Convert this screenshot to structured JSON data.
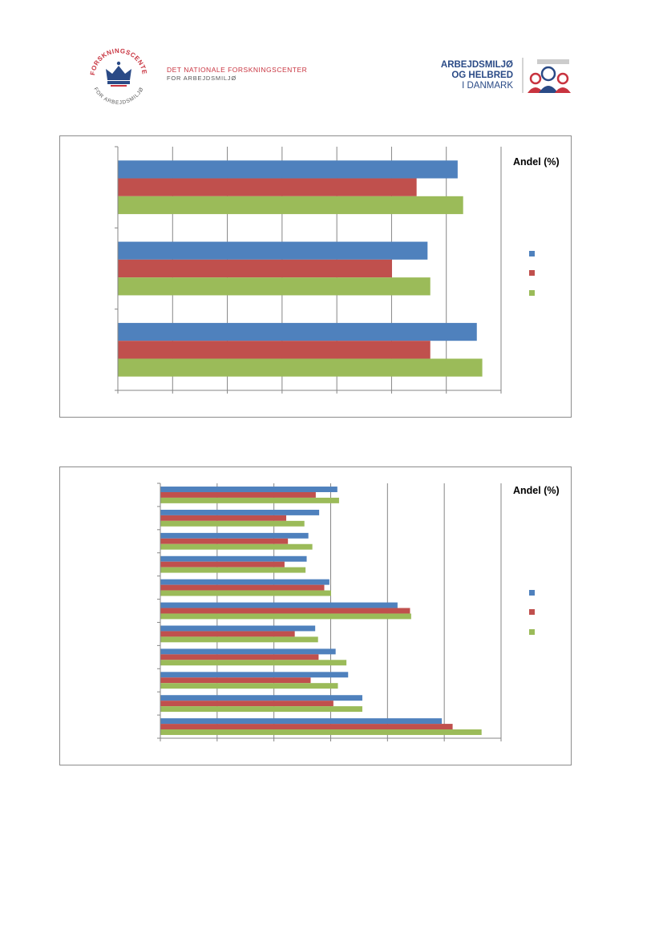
{
  "header": {
    "left_logo": {
      "ring_text": "FORSKNINGSCENTER FOR ARBEJDSMILJØ",
      "name_line1": "DET NATIONALE FORSKNINGSCENTER",
      "name_line2": "FOR ARBEJDSMILJØ"
    },
    "right_logo": {
      "line1": "ARBEJDSMILJØ",
      "line2": "OG HELBRED",
      "line3": "I DANMARK"
    }
  },
  "colors": {
    "series1": "#4f81bd",
    "series2": "#c0504d",
    "series3": "#9bbb59",
    "brand_red": "#c8333f",
    "brand_blue": "#2a4a86",
    "grid": "#868686"
  },
  "chart_data": [
    {
      "type": "bar",
      "orientation": "horizontal",
      "legend_title": "Andel (%)",
      "legend_position": "right",
      "grid": true,
      "x_ticks": 7,
      "series": [
        {
          "color": "#4f81bd",
          "values": [
            6.55,
            5.65,
            6.2
          ]
        },
        {
          "color": "#c0504d",
          "values": [
            5.7,
            5.0,
            5.45
          ]
        },
        {
          "color": "#9bbb59",
          "values": [
            6.65,
            5.7,
            6.3
          ]
        }
      ],
      "xlim": [
        0,
        7
      ]
    },
    {
      "type": "bar",
      "orientation": "horizontal",
      "legend_title": "Andel (%)",
      "legend_position": "right",
      "grid": true,
      "x_ticks": 6,
      "series": [
        {
          "color": "#4f81bd",
          "values": [
            4.95,
            3.55,
            3.3,
            3.08,
            2.72,
            4.17,
            2.97,
            2.57,
            2.6,
            2.79,
            3.11
          ]
        },
        {
          "color": "#c0504d",
          "values": [
            5.14,
            3.04,
            2.64,
            2.78,
            2.36,
            4.39,
            2.88,
            2.18,
            2.24,
            2.21,
            2.73
          ]
        },
        {
          "color": "#9bbb59",
          "values": [
            5.65,
            3.55,
            3.12,
            3.27,
            2.77,
            4.41,
            3.0,
            2.55,
            2.67,
            2.53,
            3.14
          ]
        }
      ],
      "xlim": [
        0,
        6
      ]
    }
  ]
}
